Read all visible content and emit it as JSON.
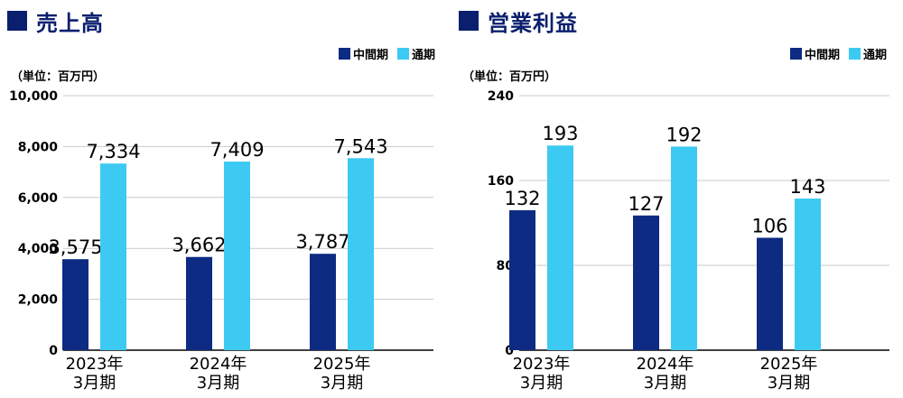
{
  "legend": {
    "interim": "中間期",
    "full": "通期"
  },
  "unit_label": "（単位：百万円）",
  "colors": {
    "interim": "#0d2b82",
    "full": "#3ccaf2",
    "title": "#0a1f6e",
    "grid": "#c9c9c9"
  },
  "chart_data": [
    {
      "type": "bar",
      "title": "売上高",
      "categories": [
        [
          "2023年",
          "3月期"
        ],
        [
          "2024年",
          "3月期"
        ],
        [
          "2025年",
          "3月期"
        ]
      ],
      "series": [
        {
          "name": "中間期",
          "values": [
            3575,
            3662,
            3787
          ]
        },
        {
          "name": "通期",
          "values": [
            7334,
            7409,
            7543
          ]
        }
      ],
      "ylim": [
        0,
        10000
      ],
      "yticks": [
        "0",
        "2,000",
        "4,000",
        "6,000",
        "8,000",
        "10,000"
      ],
      "ytick_values": [
        0,
        2000,
        4000,
        6000,
        8000,
        10000
      ],
      "value_labels": [
        [
          "3,575",
          "3,662",
          "3,787"
        ],
        [
          "7,334",
          "7,409",
          "7,543"
        ]
      ],
      "grid": true,
      "legend": "top-right"
    },
    {
      "type": "bar",
      "title": "営業利益",
      "categories": [
        [
          "2023年",
          "3月期"
        ],
        [
          "2024年",
          "3月期"
        ],
        [
          "2025年",
          "3月期"
        ]
      ],
      "series": [
        {
          "name": "中間期",
          "values": [
            132,
            127,
            106
          ]
        },
        {
          "name": "通期",
          "values": [
            193,
            192,
            143
          ]
        }
      ],
      "ylim": [
        0,
        240
      ],
      "yticks": [
        "0",
        "80",
        "160",
        "240"
      ],
      "ytick_values": [
        0,
        80,
        160,
        240
      ],
      "value_labels": [
        [
          "132",
          "127",
          "106"
        ],
        [
          "193",
          "192",
          "143"
        ]
      ],
      "grid": true,
      "legend": "top-right"
    }
  ]
}
